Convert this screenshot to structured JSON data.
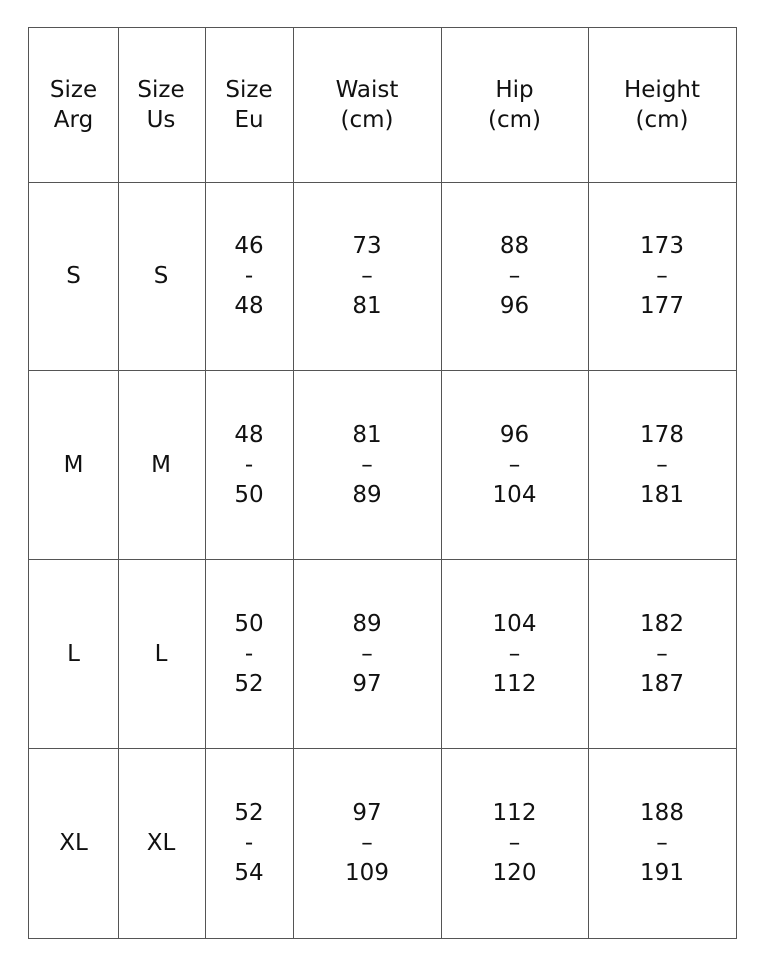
{
  "table": {
    "header": [
      [
        "Size",
        "Arg"
      ],
      [
        "Size",
        "Us"
      ],
      [
        "Size",
        "Eu"
      ],
      [
        "Waist",
        "(cm)"
      ],
      [
        "Hip",
        "(cm)"
      ],
      [
        "Height",
        "(cm)"
      ]
    ],
    "rows": [
      [
        [
          "S"
        ],
        [
          "S"
        ],
        [
          "46",
          "-",
          "48"
        ],
        [
          "73",
          "–",
          "81"
        ],
        [
          "88",
          "–",
          "96"
        ],
        [
          "173",
          "–",
          "177"
        ]
      ],
      [
        [
          "M"
        ],
        [
          "M"
        ],
        [
          "48",
          "-",
          "50"
        ],
        [
          "81",
          "–",
          "89"
        ],
        [
          "96",
          "–",
          "104"
        ],
        [
          "178",
          "–",
          "181"
        ]
      ],
      [
        [
          "L"
        ],
        [
          "L"
        ],
        [
          "50",
          "-",
          "52"
        ],
        [
          "89",
          "–",
          "97"
        ],
        [
          "104",
          "–",
          "112"
        ],
        [
          "182",
          "–",
          "187"
        ]
      ],
      [
        [
          "XL"
        ],
        [
          "XL"
        ],
        [
          "52",
          "-",
          "54"
        ],
        [
          "97",
          "–",
          "109"
        ],
        [
          "112",
          "–",
          "120"
        ],
        [
          "188",
          "–",
          "191"
        ]
      ]
    ]
  }
}
